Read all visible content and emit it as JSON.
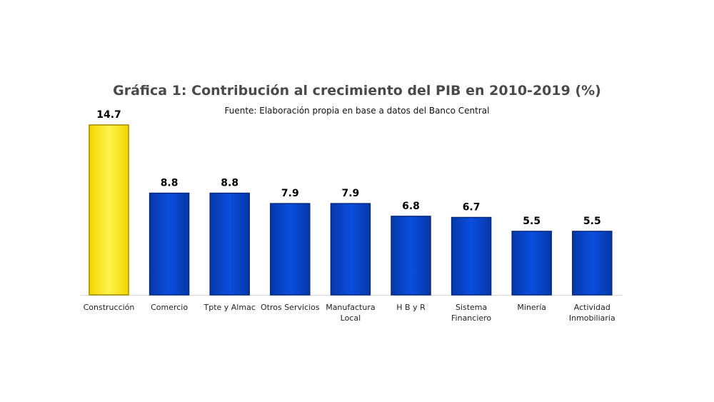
{
  "chart_data": {
    "type": "bar",
    "title": "Gráfica 1: Contribución al crecimiento del PIB en 2010-2019 (%)",
    "subtitle": "Fuente: Elaboración propia en base a datos del Banco Central",
    "categories": [
      "Construcción",
      "Comercio",
      "Tpte y Almac",
      "Otros Servicios",
      "Manufactura Local",
      "H B y R",
      "Sistema Financiero",
      "Minería",
      "Actividad Inmobiliaria"
    ],
    "category_lines": [
      [
        "Construcción"
      ],
      [
        "Comercio"
      ],
      [
        "Tpte y Almac"
      ],
      [
        "Otros Servicios"
      ],
      [
        "Manufactura",
        "Local"
      ],
      [
        "H B y R"
      ],
      [
        "Sistema",
        "Financiero"
      ],
      [
        "Minería"
      ],
      [
        "Actividad",
        "Inmobiliaria"
      ]
    ],
    "values": [
      14.7,
      8.8,
      8.8,
      7.9,
      7.9,
      6.8,
      6.7,
      5.5,
      5.5
    ],
    "value_labels": [
      "14.7",
      "8.8",
      "8.8",
      "7.9",
      "7.9",
      "6.8",
      "6.7",
      "5.5",
      "5.5"
    ],
    "ylim": [
      0,
      14.7
    ],
    "highlight_index": 0,
    "colors": {
      "highlight": "#ffee33",
      "highlight_edge": "#a08a00",
      "bar": "#0a47d1",
      "bar_edge": "#062a80",
      "axis": "#d9d9d9",
      "value_text": "#000000",
      "label_text": "#222222"
    },
    "grid": false,
    "legend": "none"
  }
}
